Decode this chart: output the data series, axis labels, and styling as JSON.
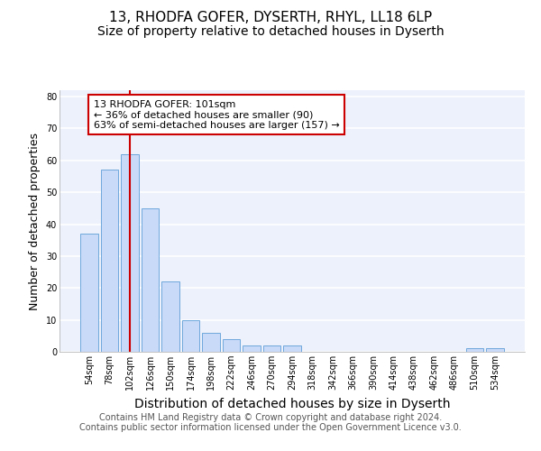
{
  "title1": "13, RHODFA GOFER, DYSERTH, RHYL, LL18 6LP",
  "title2": "Size of property relative to detached houses in Dyserth",
  "xlabel": "Distribution of detached houses by size in Dyserth",
  "ylabel": "Number of detached properties",
  "categories": [
    "54sqm",
    "78sqm",
    "102sqm",
    "126sqm",
    "150sqm",
    "174sqm",
    "198sqm",
    "222sqm",
    "246sqm",
    "270sqm",
    "294sqm",
    "318sqm",
    "342sqm",
    "366sqm",
    "390sqm",
    "414sqm",
    "438sqm",
    "462sqm",
    "486sqm",
    "510sqm",
    "534sqm"
  ],
  "values": [
    37,
    57,
    62,
    45,
    22,
    10,
    6,
    4,
    2,
    2,
    2,
    0,
    0,
    0,
    0,
    0,
    0,
    0,
    0,
    1,
    1
  ],
  "bar_color": "#c9daf8",
  "bar_edge_color": "#6fa8dc",
  "vline_x_index": 2,
  "vline_color": "#cc0000",
  "annotation_text": "13 RHODFA GOFER: 101sqm\n← 36% of detached houses are smaller (90)\n63% of semi-detached houses are larger (157) →",
  "annotation_box_color": "white",
  "annotation_box_edge_color": "#cc0000",
  "ylim": [
    0,
    82
  ],
  "yticks": [
    0,
    10,
    20,
    30,
    40,
    50,
    60,
    70,
    80
  ],
  "footer_text": "Contains HM Land Registry data © Crown copyright and database right 2024.\nContains public sector information licensed under the Open Government Licence v3.0.",
  "background_color": "#edf1fb",
  "grid_color": "white",
  "title1_fontsize": 11,
  "title2_fontsize": 10,
  "xlabel_fontsize": 10,
  "ylabel_fontsize": 9,
  "annotation_fontsize": 8,
  "footer_fontsize": 7,
  "tick_fontsize": 7
}
